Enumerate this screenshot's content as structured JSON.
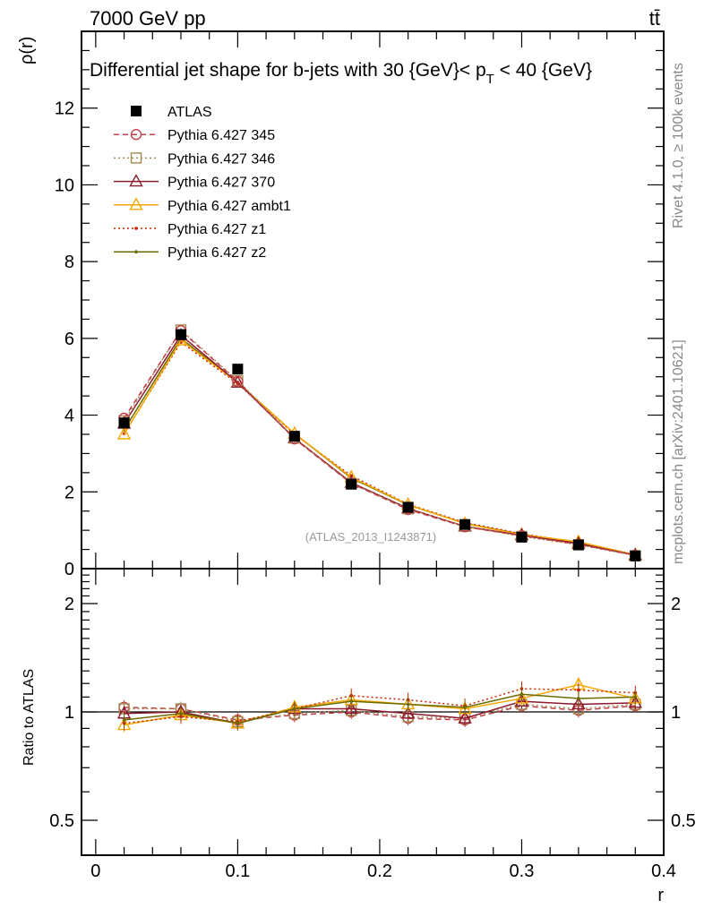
{
  "header": {
    "energy_label": "7000 GeV pp",
    "process_label": "tt̄"
  },
  "side_labels": {
    "rivet": "Rivet 4.1.0, ≥ 100k events",
    "mcplots": "mcplots.cern.ch [arXiv:2401.10621]"
  },
  "watermark": "(ATLAS_2013_I1243871)",
  "colors": {
    "atlas": "#000000",
    "p345": "#c0404a",
    "p346": "#a38a50",
    "p370": "#8b1a2e",
    "ambt1": "#f5a800",
    "z1": "#cc2200",
    "z2": "#6b6b00"
  },
  "chart_data": [
    {
      "type": "line",
      "title": "Differential jet shape for b-jets with 30 {GeV}< p_T < 40 {GeV}",
      "title_parts": {
        "main": "Differential jet shape for b-jets with 30 {GeV}< p",
        "sub": "T",
        "tail": " < 40 {GeV}"
      },
      "xlabel": "r",
      "ylabel": "ρ(r)",
      "xlim": [
        -0.01,
        0.4
      ],
      "ylim": [
        0,
        14
      ],
      "yticks": [
        0,
        2,
        4,
        6,
        8,
        10,
        12
      ],
      "yticklabels": [
        "0",
        "2",
        "4",
        "6",
        "8",
        "10",
        "12"
      ],
      "x": [
        0.02,
        0.06,
        0.1,
        0.14,
        0.18,
        0.22,
        0.26,
        0.3,
        0.34,
        0.38
      ],
      "series": [
        {
          "name": "ATLAS",
          "color_key": "atlas",
          "marker": "square-filled",
          "line": "none",
          "values": [
            3.8,
            6.1,
            5.2,
            3.45,
            2.2,
            1.6,
            1.15,
            0.82,
            0.62,
            0.33
          ]
        },
        {
          "name": "Pythia 6.427 345",
          "color_key": "p345",
          "marker": "circle-open",
          "line": "dashed",
          "values": [
            3.92,
            6.2,
            4.88,
            3.38,
            2.22,
            1.54,
            1.09,
            0.86,
            0.63,
            0.35
          ]
        },
        {
          "name": "Pythia 6.427 346",
          "color_key": "p346",
          "marker": "square-open",
          "line": "dotted",
          "values": [
            3.85,
            6.22,
            4.9,
            3.4,
            2.22,
            1.56,
            1.1,
            0.84,
            0.62,
            0.34
          ]
        },
        {
          "name": "Pythia 6.427 370",
          "color_key": "p370",
          "marker": "triangle-open",
          "line": "solid",
          "values": [
            3.78,
            6.08,
            4.85,
            3.4,
            2.24,
            1.57,
            1.1,
            0.87,
            0.65,
            0.35
          ]
        },
        {
          "name": "Pythia 6.427 ambt1",
          "color_key": "ambt1",
          "marker": "triangle-open",
          "line": "solid",
          "values": [
            3.5,
            5.95,
            4.85,
            3.52,
            2.38,
            1.67,
            1.17,
            0.89,
            0.7,
            0.36
          ]
        },
        {
          "name": "Pythia 6.427 z1",
          "color_key": "z1",
          "marker": "dot",
          "line": "dotted",
          "values": [
            3.52,
            5.9,
            4.82,
            3.5,
            2.42,
            1.68,
            1.2,
            0.91,
            0.68,
            0.37
          ]
        },
        {
          "name": "Pythia 6.427 z2",
          "color_key": "z2",
          "marker": "dot",
          "line": "solid",
          "values": [
            3.62,
            6.0,
            4.85,
            3.52,
            2.36,
            1.66,
            1.18,
            0.9,
            0.66,
            0.36
          ]
        }
      ]
    },
    {
      "type": "line",
      "xlabel": "r",
      "ylabel": "Ratio to ATLAS",
      "scale": "log",
      "xlim": [
        -0.01,
        0.4
      ],
      "ylim": [
        0.4,
        2.5
      ],
      "yticks": [
        0.5,
        1,
        2
      ],
      "yticklabels": [
        "0.5",
        "1",
        "2"
      ],
      "xticks": [
        0,
        0.1,
        0.2,
        0.3,
        0.4
      ],
      "xticklabels": [
        "0",
        "0.1",
        "0.2",
        "0.3",
        "0.4"
      ],
      "x": [
        0.02,
        0.06,
        0.1,
        0.14,
        0.18,
        0.22,
        0.26,
        0.3,
        0.34,
        0.38
      ],
      "series": [
        {
          "name": "Pythia 6.427 345",
          "values": [
            1.03,
            1.02,
            0.95,
            0.98,
            1.0,
            0.96,
            0.95,
            1.04,
            1.01,
            1.04
          ]
        },
        {
          "name": "Pythia 6.427 346",
          "values": [
            1.02,
            1.02,
            0.94,
            0.99,
            1.01,
            0.97,
            0.96,
            1.05,
            1.02,
            1.05
          ]
        },
        {
          "name": "Pythia 6.427 370",
          "values": [
            0.99,
            1.0,
            0.93,
            1.02,
            1.02,
            0.99,
            0.96,
            1.07,
            1.05,
            1.06
          ]
        },
        {
          "name": "Pythia 6.427 ambt1",
          "values": [
            0.92,
            0.98,
            0.93,
            1.03,
            1.08,
            1.05,
            1.02,
            1.09,
            1.19,
            1.09
          ]
        },
        {
          "name": "Pythia 6.427 z1",
          "values": [
            0.93,
            0.97,
            0.94,
            1.02,
            1.11,
            1.08,
            1.04,
            1.16,
            1.15,
            1.13
          ]
        },
        {
          "name": "Pythia 6.427 z2",
          "values": [
            0.95,
            0.99,
            0.93,
            1.02,
            1.07,
            1.05,
            1.03,
            1.12,
            1.09,
            1.1
          ]
        }
      ]
    }
  ]
}
